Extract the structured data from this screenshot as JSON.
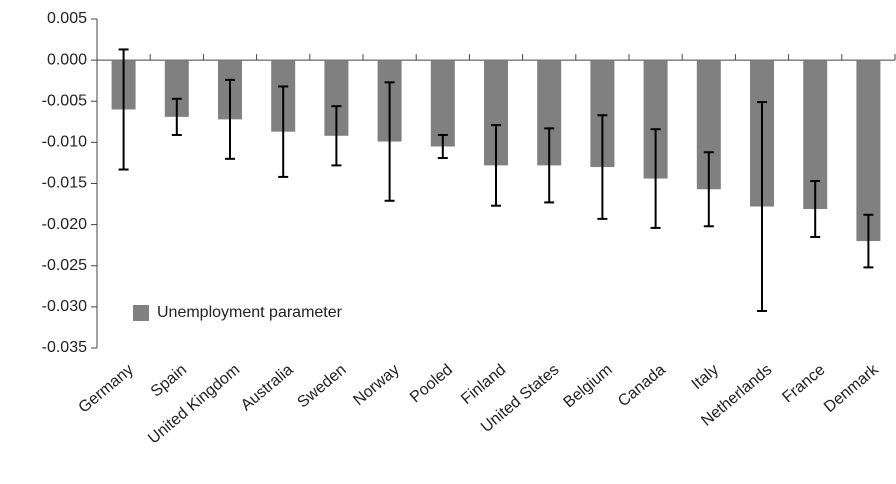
{
  "chart_data": {
    "type": "bar",
    "categories": [
      "Germany",
      "Spain",
      "United Kingdom",
      "Australia",
      "Sweden",
      "Norway",
      "Pooled",
      "Finland",
      "United States",
      "Belgium",
      "Canada",
      "Italy",
      "Netherlands",
      "France",
      "Denmark"
    ],
    "series": [
      {
        "name": "Unemployment parameter",
        "color": "#808080",
        "values": [
          -0.006,
          -0.0069,
          -0.0072,
          -0.0087,
          -0.0092,
          -0.0099,
          -0.0105,
          -0.0128,
          -0.0128,
          -0.013,
          -0.0144,
          -0.0157,
          -0.0178,
          -0.0181,
          -0.022
        ],
        "errors": [
          0.0073,
          0.0022,
          0.0048,
          0.0055,
          0.0036,
          0.0072,
          0.0014,
          0.0049,
          0.0045,
          0.0063,
          0.006,
          0.0045,
          0.0127,
          0.0034,
          0.0032
        ]
      }
    ],
    "ylim": [
      -0.035,
      0.005
    ],
    "yticks": [
      0.005,
      {
        "value": 0,
        "label": "0.000"
      },
      -0.005,
      {
        "value": -0.01,
        "label": "-0.010"
      },
      -0.015,
      {
        "value": -0.02,
        "label": "-0.020"
      },
      -0.025,
      {
        "value": -0.03,
        "label": "-0.030"
      },
      -0.035
    ],
    "legend_position": "lower left"
  }
}
